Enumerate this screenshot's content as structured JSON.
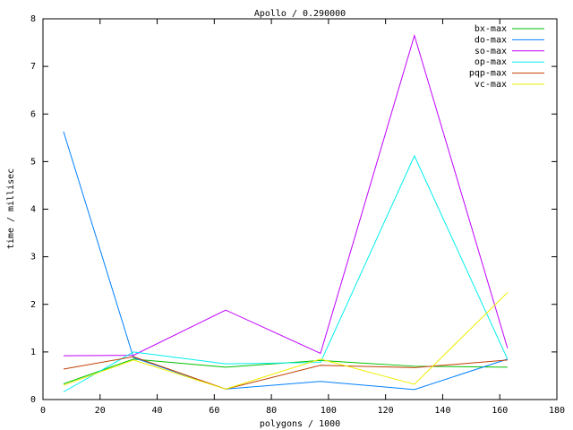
{
  "chart_data": {
    "type": "line",
    "title": "Apollo / 0.290000",
    "x_label": "polygons / 1000",
    "y_label": "time / millisec",
    "x": [
      7.2,
      31.7,
      64,
      97.2,
      130.1,
      162.7
    ],
    "xlim": [
      0,
      180
    ],
    "xticks": [
      0,
      20,
      40,
      60,
      80,
      100,
      120,
      140,
      160,
      180
    ],
    "ylim": [
      0,
      8
    ],
    "yticks": [
      0,
      1,
      2,
      3,
      4,
      5,
      6,
      7,
      8
    ],
    "grid": false,
    "legend": "top-right",
    "series": [
      {
        "name": "bx-max",
        "color": "#00c000",
        "values": [
          0.33,
          0.85,
          0.68,
          0.82,
          0.7,
          0.68
        ]
      },
      {
        "name": "do-max",
        "color": "#0080ff",
        "values": [
          5.63,
          0.88,
          0.22,
          0.38,
          0.21,
          0.85
        ]
      },
      {
        "name": "so-max",
        "color": "#c000ff",
        "values": [
          0.92,
          0.93,
          1.88,
          0.97,
          7.65,
          1.08
        ]
      },
      {
        "name": "op-max",
        "color": "#00eeee",
        "values": [
          0.16,
          1.0,
          0.75,
          0.78,
          5.12,
          0.85
        ]
      },
      {
        "name": "pqp-max",
        "color": "#c04000",
        "values": [
          0.64,
          0.9,
          0.22,
          0.72,
          0.67,
          0.83
        ]
      },
      {
        "name": "vc-max",
        "color": "#eeee00",
        "values": [
          0.3,
          0.83,
          0.22,
          0.85,
          0.32,
          2.25
        ]
      }
    ]
  }
}
